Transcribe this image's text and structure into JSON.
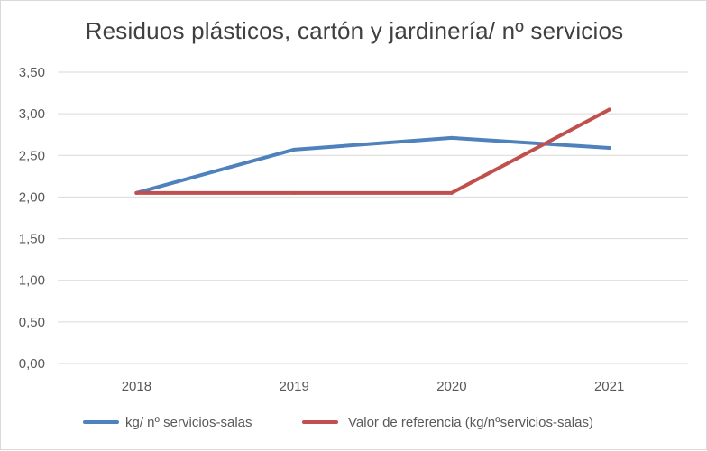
{
  "chart_data": {
    "type": "line",
    "title": "Residuos plásticos, cartón y jardinería/ nº servicios",
    "xlabel": "",
    "ylabel": "",
    "categories": [
      "2018",
      "2019",
      "2020",
      "2021"
    ],
    "ylim": [
      0,
      3.5
    ],
    "y_ticks": [
      "0,00",
      "0,50",
      "1,00",
      "1,50",
      "2,00",
      "2,50",
      "3,00",
      "3,50"
    ],
    "y_tick_values": [
      0,
      0.5,
      1,
      1.5,
      2,
      2.5,
      3,
      3.5
    ],
    "grid": true,
    "legend_position": "bottom",
    "series": [
      {
        "name": "kg/ nº servicios-salas",
        "color": "#4f81bd",
        "values": [
          2.05,
          2.57,
          2.71,
          2.59
        ]
      },
      {
        "name": "Valor de referencia (kg/nºservicios-salas)",
        "color": "#c0504d",
        "values": [
          2.05,
          2.05,
          2.05,
          3.05
        ]
      }
    ]
  }
}
